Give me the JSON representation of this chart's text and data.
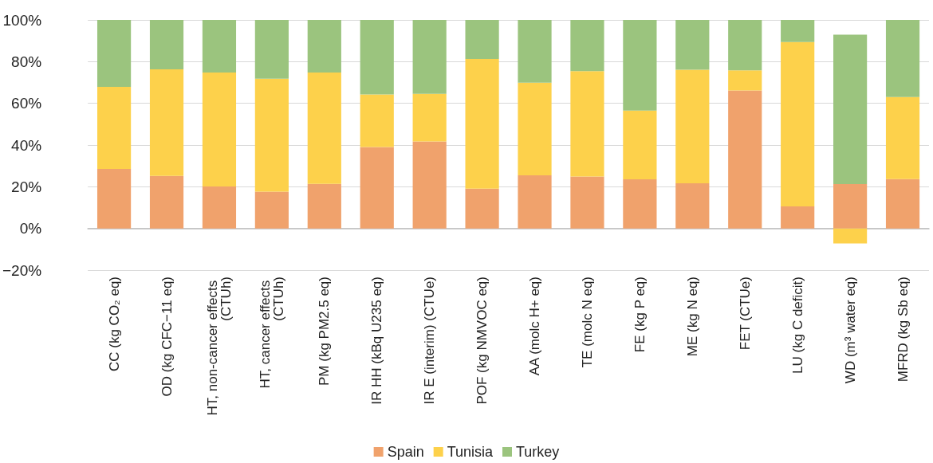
{
  "chart_data": {
    "type": "bar",
    "stacked": true,
    "categories": [
      "CC (kg CO₂ eq)",
      "OD (kg CFC−11 eq)",
      "HT, non-cancer effects (CTUh)",
      "HT, cancer effects (CTUh)",
      "PM (kg PM2.5 eq)",
      "IR HH (kBq U235 eq)",
      "IR E (interim) (CTUe)",
      "POF (kg NMVOC eq)",
      "AA (molc H+ eq)",
      "TE (molc N eq)",
      "FE (kg P eq)",
      "ME (kg N eq)",
      "FET (CTUe)",
      "LU (kg C deficit)",
      "WD (m³ water eq)",
      "MFRD (kg Sb eq)"
    ],
    "series": [
      {
        "name": "Spain",
        "color": "#f0a26c",
        "values": [
          28.5,
          25.2,
          20.1,
          17.6,
          21.4,
          39.0,
          41.7,
          19.1,
          25.5,
          24.9,
          23.6,
          21.7,
          66.2,
          10.6,
          21.3,
          23.7
        ]
      },
      {
        "name": "Tunisia",
        "color": "#fdd14b",
        "values": [
          39.4,
          51.1,
          54.7,
          54.2,
          53.4,
          25.3,
          22.9,
          62.2,
          44.4,
          50.5,
          32.9,
          54.4,
          9.6,
          78.8,
          -7.2,
          39.3
        ]
      },
      {
        "name": "Turkey",
        "color": "#9bc47e",
        "values": [
          32.1,
          23.7,
          25.2,
          28.2,
          25.2,
          35.7,
          35.4,
          18.7,
          30.1,
          24.6,
          43.5,
          23.9,
          24.2,
          10.6,
          71.6,
          37.0
        ]
      }
    ],
    "ylim": [
      -20,
      100
    ],
    "yticks": [
      {
        "value": -20,
        "label": "−20%"
      },
      {
        "value": 0,
        "label": "0%"
      },
      {
        "value": 20,
        "label": "20%"
      },
      {
        "value": 40,
        "label": "40%"
      },
      {
        "value": 60,
        "label": "60%"
      },
      {
        "value": 80,
        "label": "80%"
      },
      {
        "value": 100,
        "label": "100%"
      }
    ],
    "grid": "y",
    "legend": "bottom"
  }
}
